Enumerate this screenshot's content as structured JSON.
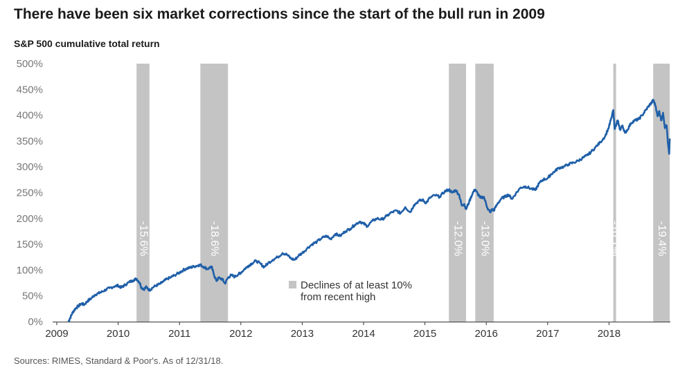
{
  "title": "There have been six market corrections since the start of the bull run in 2009",
  "source": "Sources: RIMES, Standard & Poor's. As of 12/31/18.",
  "chart_data": {
    "type": "line",
    "title": "There have been six market corrections since the start of the bull run in 2009",
    "ylabel": "S&P 500 cumulative total return",
    "xlabel": "",
    "xlim": [
      2009.0,
      2018.99
    ],
    "ylim": [
      0,
      500
    ],
    "y_ticks": [
      "0%",
      "50%",
      "100%",
      "150%",
      "200%",
      "250%",
      "300%",
      "350%",
      "400%",
      "450%",
      "500%"
    ],
    "x_ticks": [
      "2009",
      "2010",
      "2011",
      "2012",
      "2013",
      "2014",
      "2015",
      "2016",
      "2017",
      "2018"
    ],
    "grid": false,
    "legend": {
      "label": "Declines of at least 10% from recent high",
      "placement": "center-bottom"
    },
    "colors": {
      "line": "#1f5fa8",
      "band": "#c4c4c4"
    },
    "corrections": [
      {
        "start": 2010.3,
        "end": 2010.51,
        "label": "-15.6%"
      },
      {
        "start": 2011.34,
        "end": 2011.79,
        "label": "-18.6%"
      },
      {
        "start": 2015.39,
        "end": 2015.67,
        "label": "-12.0%"
      },
      {
        "start": 2015.82,
        "end": 2016.12,
        "label": "-13.0%"
      },
      {
        "start": 2018.07,
        "end": 2018.11,
        "label": "-10.1%"
      },
      {
        "start": 2018.72,
        "end": 2018.99,
        "label": "-19.4%"
      }
    ],
    "series": [
      {
        "values": [
          [
            2009.19,
            0
          ],
          [
            2009.22,
            8
          ],
          [
            2009.26,
            18
          ],
          [
            2009.3,
            25
          ],
          [
            2009.35,
            30
          ],
          [
            2009.4,
            35
          ],
          [
            2009.45,
            33
          ],
          [
            2009.5,
            40
          ],
          [
            2009.56,
            45
          ],
          [
            2009.62,
            52
          ],
          [
            2009.68,
            55
          ],
          [
            2009.74,
            58
          ],
          [
            2009.8,
            62
          ],
          [
            2009.86,
            65
          ],
          [
            2009.93,
            68
          ],
          [
            2010.0,
            70
          ],
          [
            2010.05,
            66
          ],
          [
            2010.1,
            70
          ],
          [
            2010.17,
            76
          ],
          [
            2010.24,
            80
          ],
          [
            2010.3,
            83
          ],
          [
            2010.35,
            76
          ],
          [
            2010.38,
            66
          ],
          [
            2010.42,
            63
          ],
          [
            2010.46,
            67
          ],
          [
            2010.51,
            61
          ],
          [
            2010.56,
            66
          ],
          [
            2010.62,
            70
          ],
          [
            2010.68,
            73
          ],
          [
            2010.74,
            78
          ],
          [
            2010.8,
            83
          ],
          [
            2010.86,
            86
          ],
          [
            2010.92,
            90
          ],
          [
            2011.0,
            95
          ],
          [
            2011.06,
            100
          ],
          [
            2011.12,
            103
          ],
          [
            2011.18,
            105
          ],
          [
            2011.24,
            107
          ],
          [
            2011.3,
            109
          ],
          [
            2011.34,
            110
          ],
          [
            2011.4,
            106
          ],
          [
            2011.46,
            102
          ],
          [
            2011.52,
            107
          ],
          [
            2011.56,
            92
          ],
          [
            2011.6,
            79
          ],
          [
            2011.64,
            85
          ],
          [
            2011.7,
            82
          ],
          [
            2011.74,
            74
          ],
          [
            2011.79,
            85
          ],
          [
            2011.84,
            90
          ],
          [
            2011.9,
            87
          ],
          [
            2011.96,
            92
          ],
          [
            2012.0,
            95
          ],
          [
            2012.06,
            102
          ],
          [
            2012.12,
            108
          ],
          [
            2012.18,
            113
          ],
          [
            2012.25,
            118
          ],
          [
            2012.32,
            112
          ],
          [
            2012.38,
            106
          ],
          [
            2012.44,
            113
          ],
          [
            2012.52,
            120
          ],
          [
            2012.6,
            125
          ],
          [
            2012.68,
            133
          ],
          [
            2012.75,
            130
          ],
          [
            2012.82,
            122
          ],
          [
            2012.88,
            120
          ],
          [
            2012.94,
            128
          ],
          [
            2013.0,
            133
          ],
          [
            2013.08,
            142
          ],
          [
            2013.16,
            150
          ],
          [
            2013.24,
            155
          ],
          [
            2013.32,
            162
          ],
          [
            2013.4,
            166
          ],
          [
            2013.46,
            160
          ],
          [
            2013.54,
            170
          ],
          [
            2013.62,
            166
          ],
          [
            2013.7,
            175
          ],
          [
            2013.78,
            180
          ],
          [
            2013.86,
            188
          ],
          [
            2013.94,
            194
          ],
          [
            2014.0,
            190
          ],
          [
            2014.06,
            185
          ],
          [
            2014.14,
            195
          ],
          [
            2014.22,
            200
          ],
          [
            2014.3,
            198
          ],
          [
            2014.38,
            205
          ],
          [
            2014.46,
            212
          ],
          [
            2014.54,
            215
          ],
          [
            2014.6,
            210
          ],
          [
            2014.68,
            222
          ],
          [
            2014.76,
            212
          ],
          [
            2014.82,
            226
          ],
          [
            2014.9,
            234
          ],
          [
            2014.96,
            236
          ],
          [
            2015.02,
            230
          ],
          [
            2015.08,
            240
          ],
          [
            2015.16,
            245
          ],
          [
            2015.24,
            242
          ],
          [
            2015.32,
            252
          ],
          [
            2015.39,
            256
          ],
          [
            2015.44,
            250
          ],
          [
            2015.5,
            255
          ],
          [
            2015.56,
            245
          ],
          [
            2015.6,
            225
          ],
          [
            2015.64,
            228
          ],
          [
            2015.67,
            218
          ],
          [
            2015.72,
            232
          ],
          [
            2015.78,
            250
          ],
          [
            2015.82,
            256
          ],
          [
            2015.86,
            248
          ],
          [
            2015.9,
            240
          ],
          [
            2015.96,
            242
          ],
          [
            2016.02,
            220
          ],
          [
            2016.06,
            212
          ],
          [
            2016.1,
            218
          ],
          [
            2016.12,
            215
          ],
          [
            2016.18,
            228
          ],
          [
            2016.24,
            238
          ],
          [
            2016.3,
            242
          ],
          [
            2016.36,
            246
          ],
          [
            2016.42,
            238
          ],
          [
            2016.48,
            248
          ],
          [
            2016.56,
            260
          ],
          [
            2016.64,
            262
          ],
          [
            2016.72,
            258
          ],
          [
            2016.8,
            255
          ],
          [
            2016.86,
            268
          ],
          [
            2016.92,
            275
          ],
          [
            2017.0,
            278
          ],
          [
            2017.06,
            286
          ],
          [
            2017.12,
            292
          ],
          [
            2017.18,
            298
          ],
          [
            2017.26,
            300
          ],
          [
            2017.34,
            305
          ],
          [
            2017.42,
            308
          ],
          [
            2017.5,
            312
          ],
          [
            2017.58,
            318
          ],
          [
            2017.64,
            322
          ],
          [
            2017.7,
            328
          ],
          [
            2017.78,
            338
          ],
          [
            2017.86,
            348
          ],
          [
            2017.94,
            360
          ],
          [
            2018.0,
            378
          ],
          [
            2018.04,
            395
          ],
          [
            2018.07,
            410
          ],
          [
            2018.09,
            375
          ],
          [
            2018.11,
            378
          ],
          [
            2018.14,
            390
          ],
          [
            2018.18,
            372
          ],
          [
            2018.22,
            380
          ],
          [
            2018.26,
            366
          ],
          [
            2018.3,
            372
          ],
          [
            2018.36,
            385
          ],
          [
            2018.42,
            390
          ],
          [
            2018.48,
            392
          ],
          [
            2018.54,
            400
          ],
          [
            2018.6,
            410
          ],
          [
            2018.66,
            420
          ],
          [
            2018.7,
            425
          ],
          [
            2018.72,
            430
          ],
          [
            2018.76,
            418
          ],
          [
            2018.79,
            398
          ],
          [
            2018.82,
            408
          ],
          [
            2018.85,
            390
          ],
          [
            2018.88,
            405
          ],
          [
            2018.91,
            375
          ],
          [
            2018.94,
            380
          ],
          [
            2018.96,
            345
          ],
          [
            2018.98,
            325
          ],
          [
            2018.99,
            355
          ]
        ]
      }
    ]
  }
}
